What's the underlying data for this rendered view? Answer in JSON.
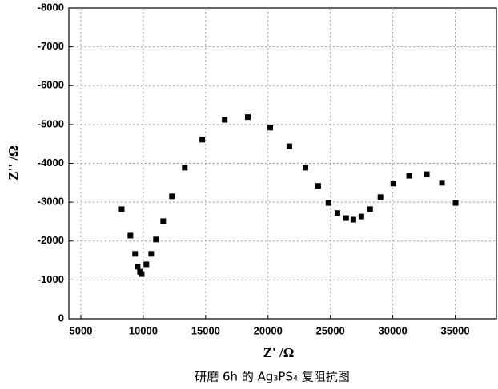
{
  "chart_data": {
    "type": "scatter",
    "x_label": "Z' /Ω",
    "y_label": "Z'' /Ω",
    "caption": "研磨 6h 的 Ag₃PS₄ 复阻抗图",
    "color": "#000000",
    "grid": true,
    "xlim": [
      4040,
      38300
    ],
    "xticks": [
      5000,
      10000,
      15000,
      20000,
      25000,
      30000,
      35000
    ],
    "ylim": [
      0,
      -8000
    ],
    "yticks": [
      0,
      -1000,
      -2000,
      -3000,
      -4000,
      -5000,
      -6000,
      -7000,
      -8000
    ],
    "x": [
      8270,
      8970,
      9350,
      9550,
      9740,
      9870,
      10250,
      10640,
      11020,
      11600,
      12300,
      13330,
      14730,
      16530,
      18380,
      20180,
      21710,
      23000,
      24020,
      24850,
      25560,
      26260,
      26840,
      27480,
      28180,
      29010,
      30040,
      31310,
      32720,
      33940,
      35030
    ],
    "values": [
      -2820,
      -2140,
      -1670,
      -1340,
      -1210,
      -1150,
      -1400,
      -1670,
      -2040,
      -2510,
      -3150,
      -3890,
      -4610,
      -5120,
      -5190,
      -4920,
      -4440,
      -3890,
      -3420,
      -2980,
      -2720,
      -2590,
      -2550,
      -2630,
      -2820,
      -3130,
      -3480,
      -3680,
      -3720,
      -3500,
      -2980
    ]
  }
}
